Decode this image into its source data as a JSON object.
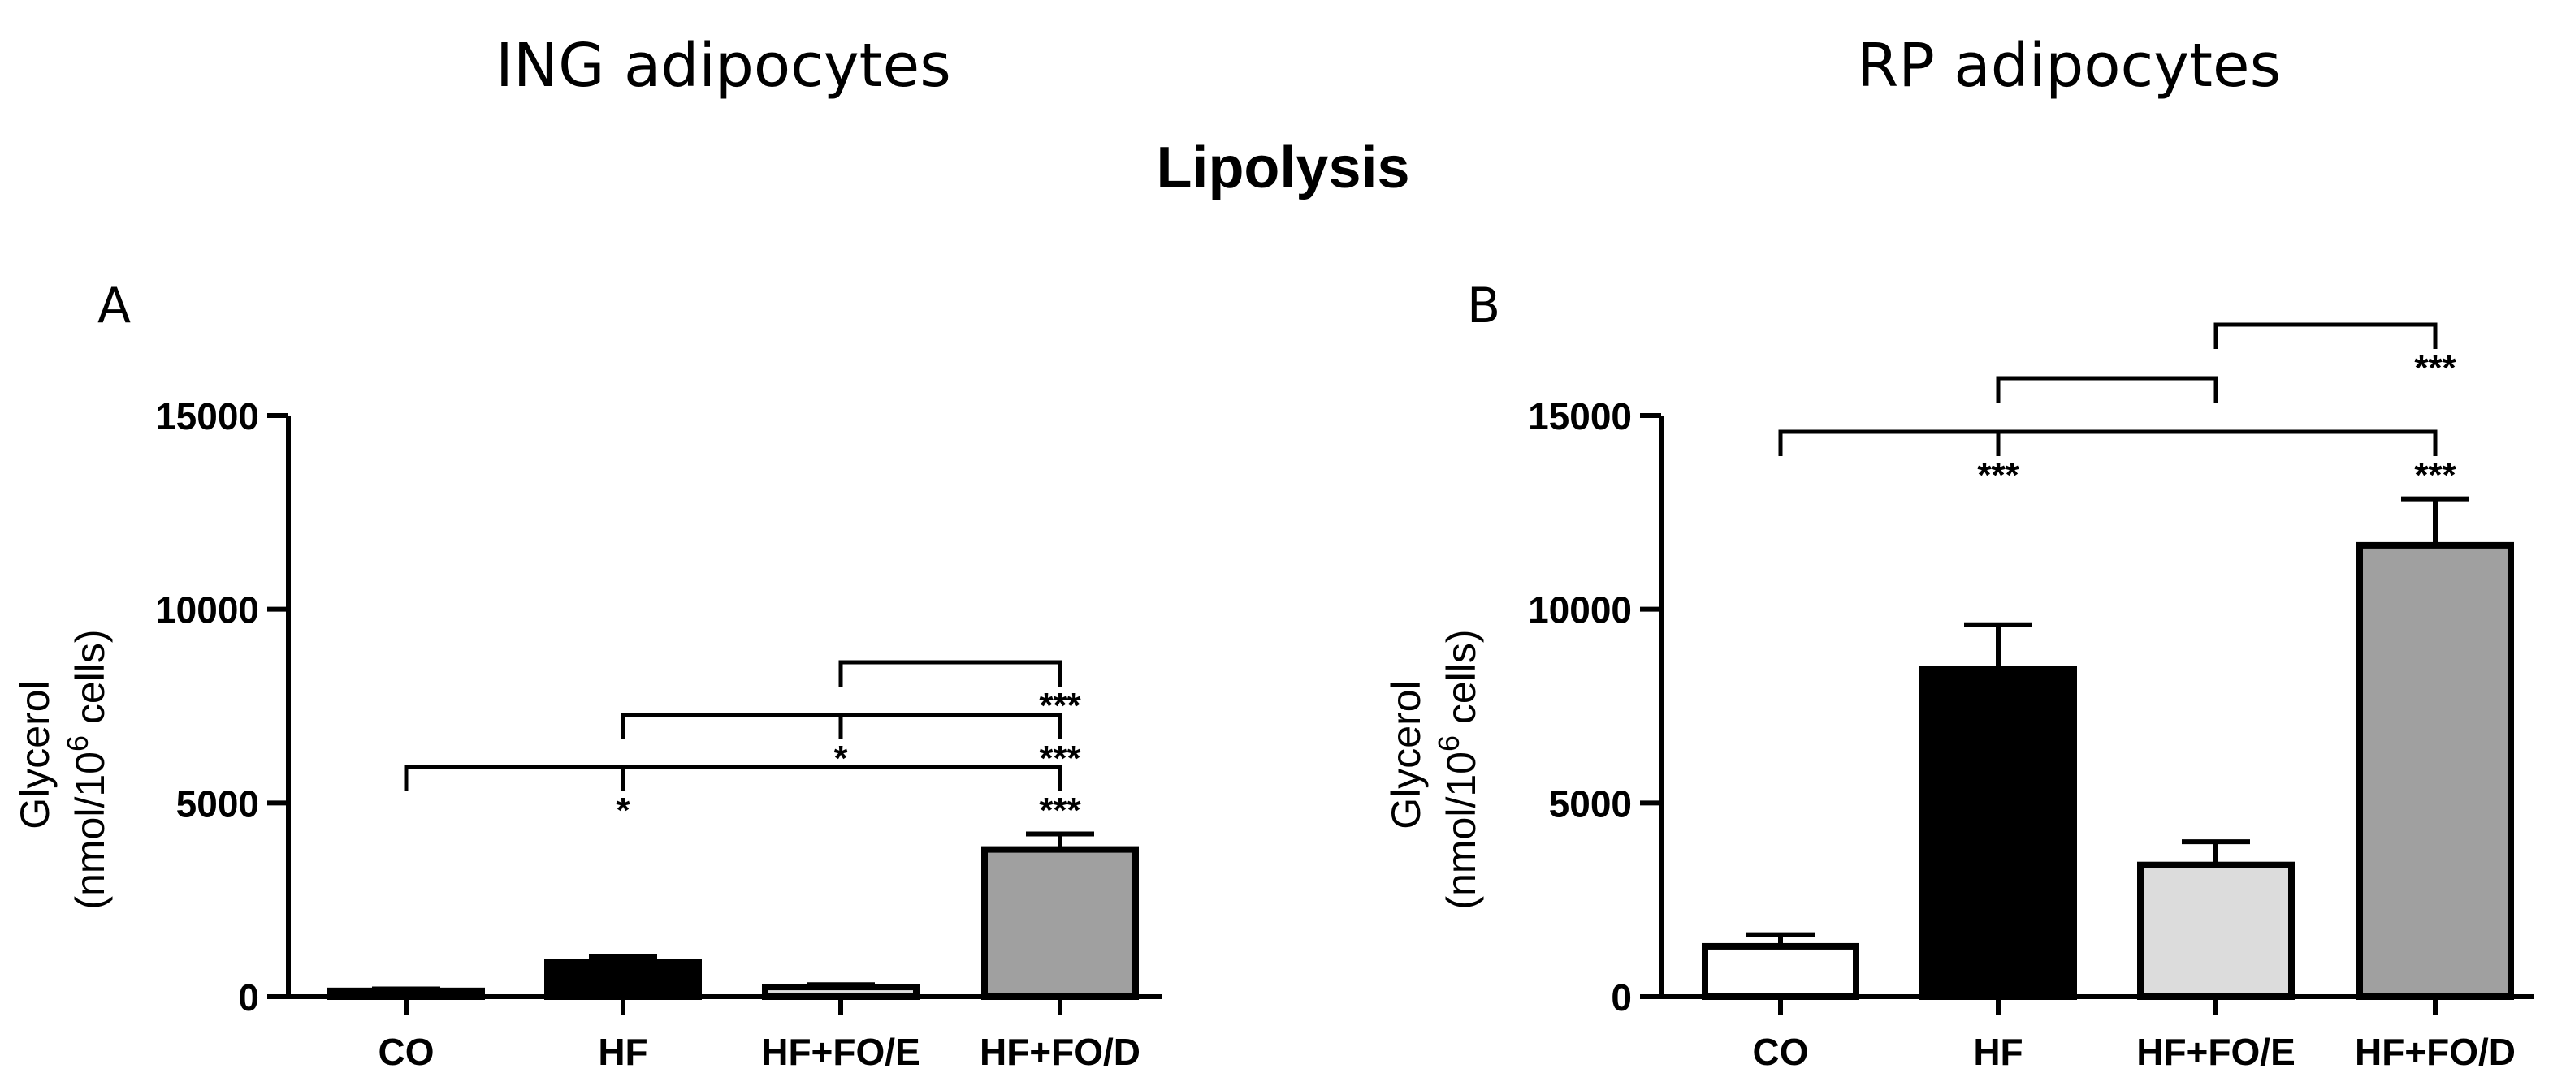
{
  "figure": {
    "title": "Lipolysis",
    "ylabel_line1": "Glycerol",
    "ylabel_line2_prefix": "(nmol/10",
    "ylabel_line2_sup": "6",
    "ylabel_line2_suffix": " cells)"
  },
  "chart_data": [
    {
      "type": "bar",
      "panel": "A",
      "title": "ING adipocytes",
      "categories": [
        "CO",
        "HF",
        "HF+FO/E",
        "HF+FO/D"
      ],
      "values": [
        150,
        900,
        250,
        3800
      ],
      "errors": [
        50,
        130,
        60,
        400
      ],
      "colors": [
        "#ffffff",
        "#000000",
        "#dcdcdc",
        "#a0a0a0"
      ],
      "ylim": [
        0,
        15000
      ],
      "yticks": [
        0,
        5000,
        10000,
        15000
      ],
      "ytick_labels": [
        "0",
        "5000",
        "10000",
        "15000"
      ],
      "xlabel": "",
      "annotations": [
        {
          "from": "CO",
          "to": "HF+FO/D",
          "mid_label": "*",
          "end_label": "***"
        },
        {
          "from": "HF",
          "to": "HF+FO/D",
          "mid_label": "*",
          "end_label": "***"
        },
        {
          "from": "HF+FO/E",
          "to": "HF+FO/D",
          "mid_label": "",
          "end_label": "***"
        }
      ]
    },
    {
      "type": "bar",
      "panel": "B",
      "title": "RP adipocytes",
      "categories": [
        "CO",
        "HF",
        "HF+FO/E",
        "HF+FO/D"
      ],
      "values": [
        1300,
        8450,
        3400,
        11650
      ],
      "errors": [
        300,
        1150,
        600,
        1200
      ],
      "colors": [
        "#ffffff",
        "#000000",
        "#dcdcdc",
        "#a0a0a0"
      ],
      "ylim": [
        0,
        15000
      ],
      "yticks": [
        0,
        5000,
        10000,
        15000
      ],
      "ytick_labels": [
        "0",
        "5000",
        "10000",
        "15000"
      ],
      "xlabel": "",
      "annotations": [
        {
          "from": "CO",
          "to": "HF+FO/D",
          "mid_label": "*",
          "end_label": "***",
          "from_label": "***"
        },
        {
          "from": "HF",
          "to": "HF+FO/E",
          "mid_label": "",
          "end_label": ""
        },
        {
          "from": "HF+FO/E",
          "to": "HF+FO/D",
          "mid_label": "",
          "end_label": "***"
        }
      ]
    }
  ]
}
